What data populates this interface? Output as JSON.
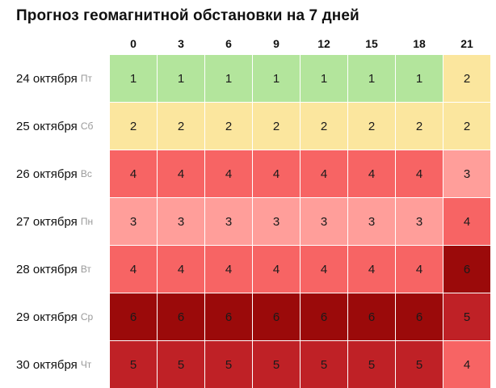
{
  "title": "Прогноз геомагнитной обстановки на 7 дней",
  "hours": [
    "0",
    "3",
    "6",
    "9",
    "12",
    "15",
    "18",
    "21"
  ],
  "level_colors": {
    "1": "#b3e59c",
    "2": "#fbe69e",
    "3": "#ff9e9a",
    "4": "#f76464",
    "5": "#bf2126",
    "6": "#9b0a0a"
  },
  "rows": [
    {
      "date": "24 октября",
      "dow": "Пт",
      "values": [
        1,
        1,
        1,
        1,
        1,
        1,
        1,
        2
      ]
    },
    {
      "date": "25 октября",
      "dow": "Сб",
      "values": [
        2,
        2,
        2,
        2,
        2,
        2,
        2,
        2
      ]
    },
    {
      "date": "26 октября",
      "dow": "Вс",
      "values": [
        4,
        4,
        4,
        4,
        4,
        4,
        4,
        3
      ]
    },
    {
      "date": "27 октября",
      "dow": "Пн",
      "values": [
        3,
        3,
        3,
        3,
        3,
        3,
        3,
        4
      ]
    },
    {
      "date": "28 октября",
      "dow": "Вт",
      "values": [
        4,
        4,
        4,
        4,
        4,
        4,
        4,
        6
      ]
    },
    {
      "date": "29 октября",
      "dow": "Ср",
      "values": [
        6,
        6,
        6,
        6,
        6,
        6,
        6,
        5
      ]
    },
    {
      "date": "30 октября",
      "dow": "Чт",
      "values": [
        5,
        5,
        5,
        5,
        5,
        5,
        5,
        4
      ]
    }
  ]
}
